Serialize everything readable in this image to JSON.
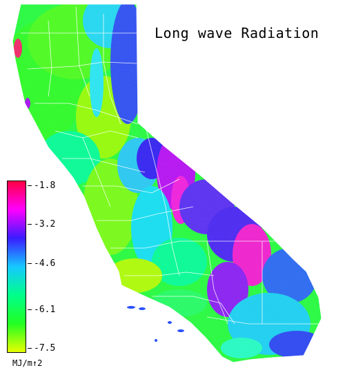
{
  "title": "Long wave Radiation",
  "legend": {
    "ticks": [
      "-1.8",
      "-3.2",
      "-4.6",
      "-6.1",
      "-7.5"
    ],
    "units": "MJ/m↑2",
    "colors": [
      "#ff0044",
      "#ff00ff",
      "#3a1cff",
      "#16c8ff",
      "#00ff8a",
      "#22ff22",
      "#e6ff00"
    ]
  }
}
